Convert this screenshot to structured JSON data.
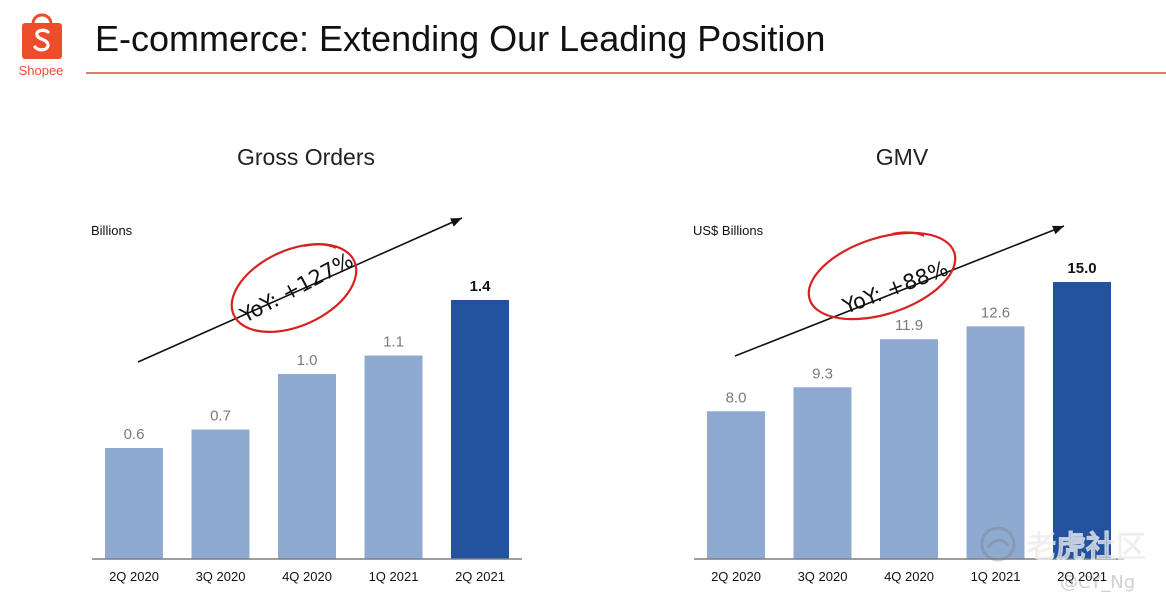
{
  "header": {
    "logo_text": "Shopee",
    "title": "E-commerce: Extending Our Leading Position"
  },
  "colors": {
    "accent": "#ee4d2d",
    "bar_light": "#8faad1",
    "bar_highlight": "#23529e",
    "annotation_circle": "#d72222",
    "axis": "#7f7f7f"
  },
  "chart_data": [
    {
      "type": "bar",
      "title": "Gross Orders",
      "ylabel": "Billions",
      "categories": [
        "2Q 2020",
        "3Q 2020",
        "4Q 2020",
        "1Q 2021",
        "2Q 2021"
      ],
      "values": [
        0.6,
        0.7,
        1.0,
        1.1,
        1.4
      ],
      "value_labels": [
        "0.6",
        "0.7",
        "1.0",
        "1.1",
        "1.4"
      ],
      "highlight_index": 4,
      "ylim": [
        0,
        1.4
      ],
      "grid": false,
      "annotation": "YoY: +127%"
    },
    {
      "type": "bar",
      "title": "GMV",
      "ylabel": "US$ Billions",
      "categories": [
        "2Q 2020",
        "3Q 2020",
        "4Q 2020",
        "1Q 2021",
        "2Q 2021"
      ],
      "values": [
        8.0,
        9.3,
        11.9,
        12.6,
        15.0
      ],
      "value_labels": [
        "8.0",
        "9.3",
        "11.9",
        "12.6",
        "15.0"
      ],
      "highlight_index": 4,
      "ylim": [
        0,
        15.0
      ],
      "grid": false,
      "annotation": "YoY: +88%"
    }
  ],
  "watermark": {
    "text": "老虎社区",
    "user": "@CY_Ng"
  }
}
